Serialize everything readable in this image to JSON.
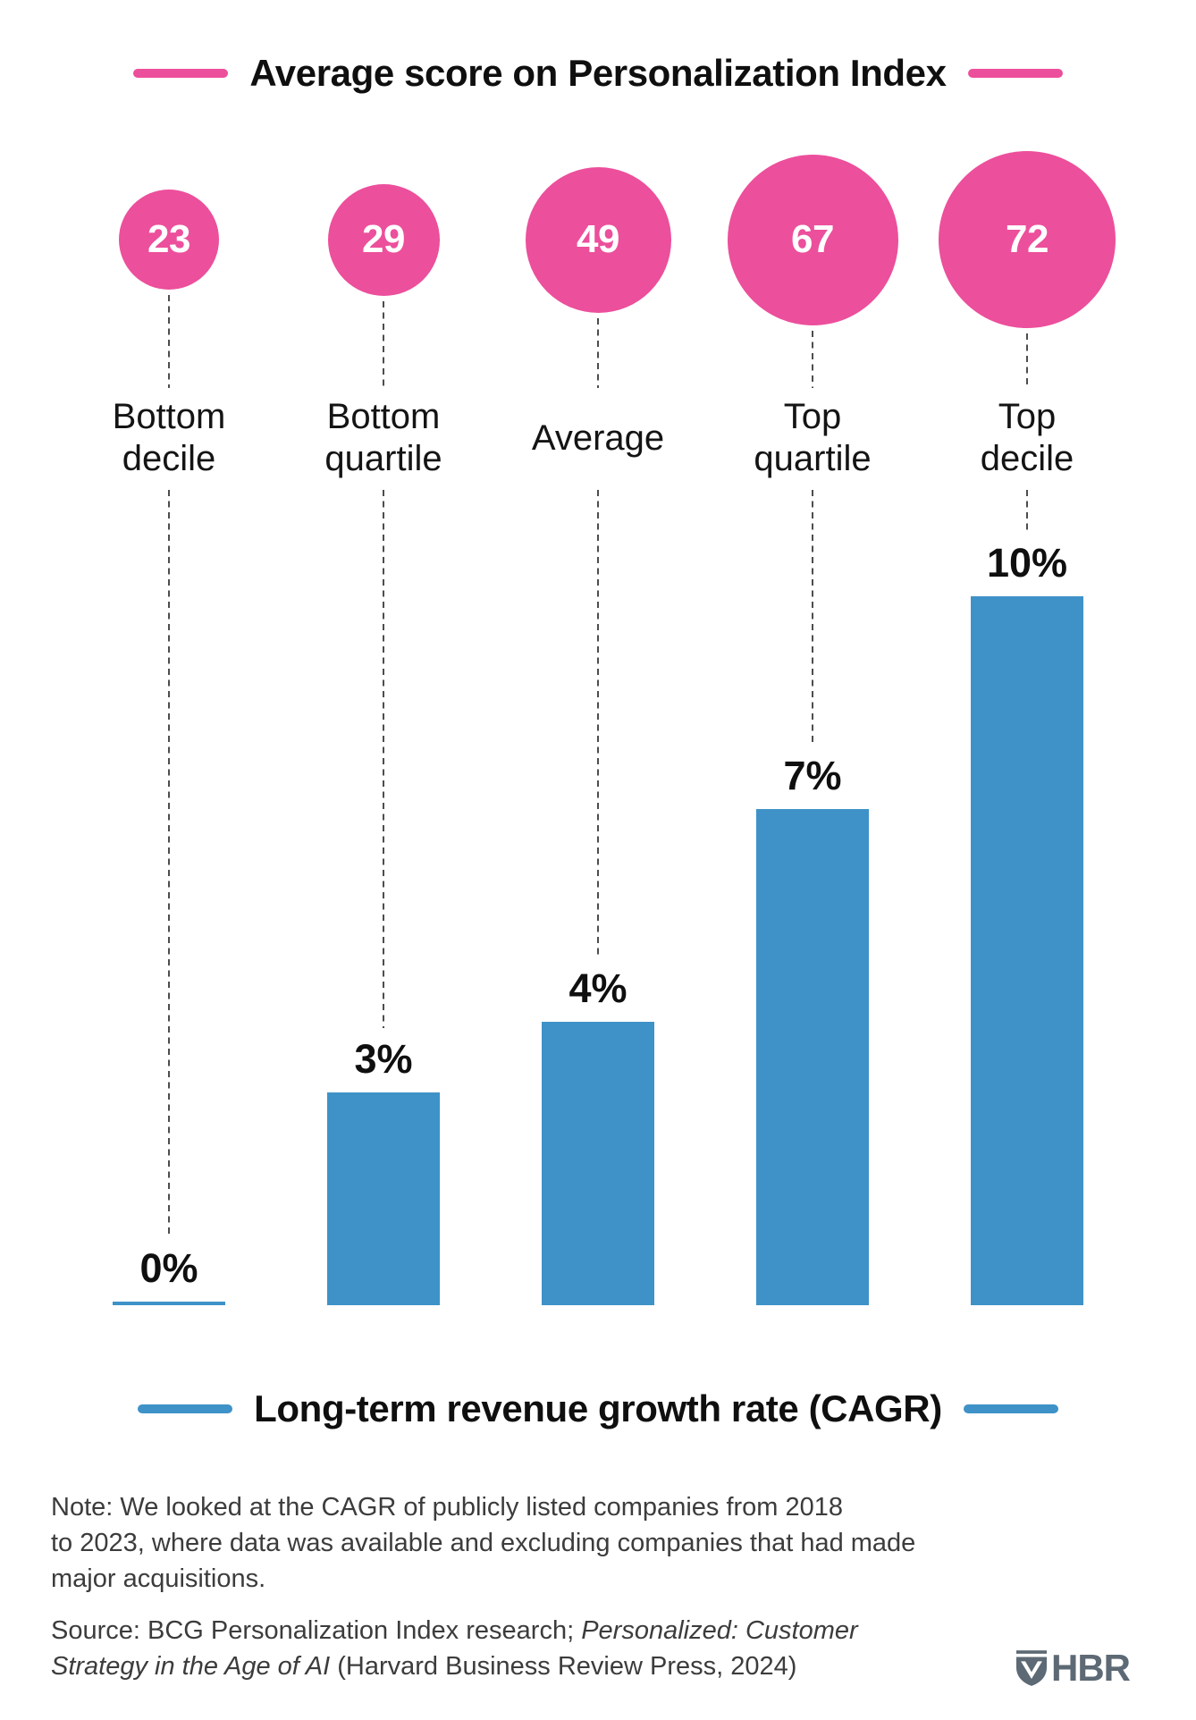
{
  "header": {
    "title": "Average score on Personalization Index",
    "accent_color": "#ec4f9c"
  },
  "bottom_legend": {
    "title": "Long-term revenue growth rate (CAGR)",
    "accent_color": "#3e92c8"
  },
  "chart_data": {
    "type": "bar",
    "categories": [
      "Bottom decile",
      "Bottom quartile",
      "Average",
      "Top quartile",
      "Top decile"
    ],
    "category_label_lines": [
      [
        "Bottom",
        "decile"
      ],
      [
        "Bottom",
        "quartile"
      ],
      [
        "Average"
      ],
      [
        "Top",
        "quartile"
      ],
      [
        "Top",
        "decile"
      ]
    ],
    "series": [
      {
        "name": "Average score on Personalization Index",
        "display": "bubble",
        "color": "#ec4f9c",
        "values": [
          23,
          29,
          49,
          67,
          72
        ],
        "note": "bubble area proportional to value"
      },
      {
        "name": "Long-term revenue growth rate (CAGR)",
        "display": "bar",
        "color": "#3e92c8",
        "values": [
          0,
          3,
          4,
          7,
          10
        ],
        "value_labels": [
          "0%",
          "3%",
          "4%",
          "7%",
          "10%"
        ]
      }
    ],
    "ylim": [
      0,
      10
    ],
    "grid": false,
    "legend_position": "title-top-and-bottom"
  },
  "note": {
    "lines": [
      "Note: We looked at the CAGR of publicly listed companies from 2018",
      "to 2023, where data was available and excluding companies that had made",
      "major acquisitions."
    ]
  },
  "source": {
    "part1": "Source: BCG Personalization Index research; ",
    "part2_italic": "Personalized: Customer",
    "part3_italic": "Strategy in the Age of AI",
    "part4": " (Harvard Business Review Press, 2024)"
  },
  "logo": {
    "text": "HBR"
  },
  "colors": {
    "pink": "#ec4f9c",
    "blue": "#3e92c8",
    "dash_gray": "#4d4d4d",
    "logo_gray": "#5d6974"
  }
}
